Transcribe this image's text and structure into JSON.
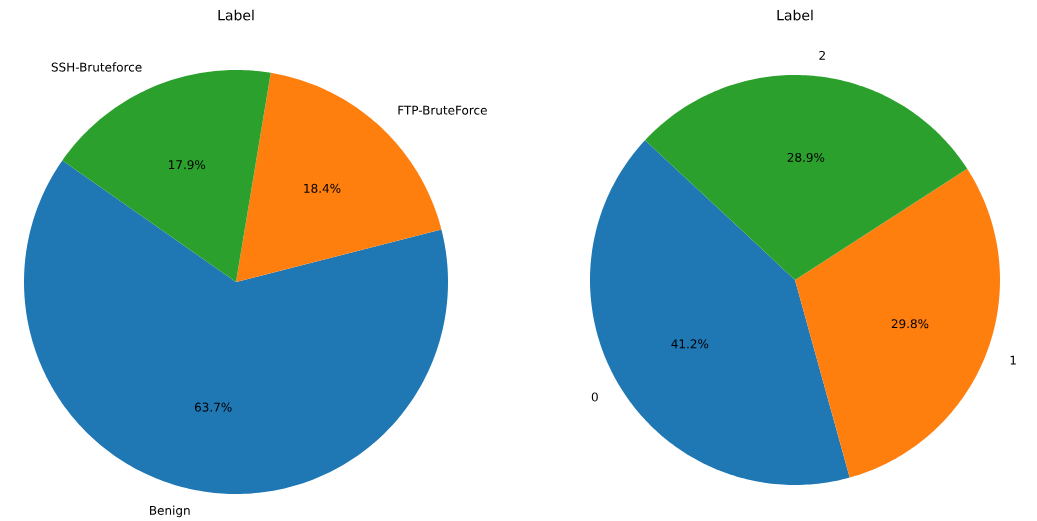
{
  "chart_data": [
    {
      "type": "pie",
      "title": "Label",
      "categories": [
        "Benign",
        "FTP-BruteForce",
        "SSH-Bruteforce"
      ],
      "values": [
        63.7,
        18.4,
        17.9
      ],
      "colors": [
        "#1f77b4",
        "#ff7f0e",
        "#2ca02c"
      ],
      "value_labels": [
        "63.7%",
        "18.4%",
        "17.9%"
      ]
    },
    {
      "type": "pie",
      "title": "Label",
      "categories": [
        "0",
        "1",
        "2"
      ],
      "values": [
        41.2,
        29.8,
        28.9
      ],
      "colors": [
        "#1f77b4",
        "#ff7f0e",
        "#2ca02c"
      ],
      "value_labels": [
        "41.2%",
        "29.8%",
        "28.9%"
      ]
    }
  ]
}
